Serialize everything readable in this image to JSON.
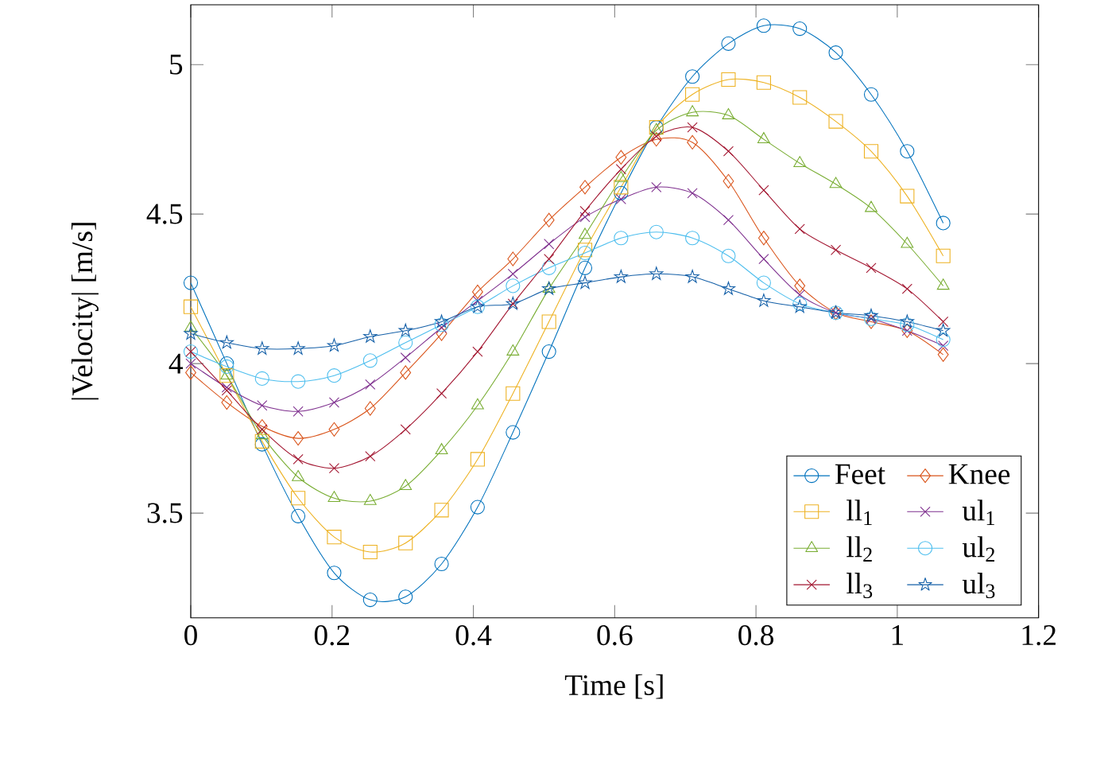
{
  "chart_data": {
    "type": "line",
    "xlabel": "Time [s]",
    "ylabel": "|Velocity| [m/s]",
    "xlim": [
      0,
      1.2
    ],
    "ylim": [
      3.15,
      5.2
    ],
    "xticks": [
      0,
      0.2,
      0.4,
      0.6,
      0.8,
      1,
      1.2
    ],
    "yticks": [
      3.5,
      4,
      4.5,
      5
    ],
    "x": [
      0,
      0.051,
      0.101,
      0.152,
      0.203,
      0.254,
      0.304,
      0.355,
      0.406,
      0.456,
      0.507,
      0.558,
      0.609,
      0.659,
      0.71,
      0.761,
      0.811,
      0.862,
      0.913,
      0.963,
      1.014,
      1.065
    ],
    "legend": "bottom right",
    "grid": false,
    "line_style": "solid",
    "series": [
      {
        "name": "Feet",
        "color": "#0072bd",
        "marker": "circle",
        "values": [
          4.27,
          4.0,
          3.73,
          3.49,
          3.3,
          3.21,
          3.22,
          3.33,
          3.52,
          3.77,
          4.04,
          4.32,
          4.57,
          4.79,
          4.96,
          5.07,
          5.13,
          5.12,
          5.04,
          4.9,
          4.71,
          4.47
        ]
      },
      {
        "name": "Knee",
        "color": "#d95319",
        "marker": "diamond",
        "values": [
          3.97,
          3.87,
          3.79,
          3.75,
          3.78,
          3.85,
          3.97,
          4.1,
          4.24,
          4.35,
          4.48,
          4.59,
          4.69,
          4.75,
          4.74,
          4.61,
          4.42,
          4.26,
          4.17,
          4.14,
          4.11,
          4.03
        ]
      },
      {
        "name": "ll$_{1}$",
        "color": "#edb120",
        "marker": "square",
        "values": [
          4.19,
          3.96,
          3.74,
          3.55,
          3.42,
          3.37,
          3.4,
          3.51,
          3.68,
          3.9,
          4.14,
          4.38,
          4.59,
          4.79,
          4.9,
          4.95,
          4.94,
          4.89,
          4.81,
          4.71,
          4.56,
          4.36
        ]
      },
      {
        "name": "ul$_{1}$",
        "color": "#7e2f8e",
        "marker": "cross",
        "values": [
          4.0,
          3.92,
          3.86,
          3.84,
          3.87,
          3.93,
          4.02,
          4.12,
          4.21,
          4.3,
          4.4,
          4.49,
          4.55,
          4.59,
          4.57,
          4.48,
          4.35,
          4.23,
          4.17,
          4.15,
          4.11,
          4.06
        ]
      },
      {
        "name": "ll$_{2}$",
        "color": "#77ac30",
        "marker": "triangle",
        "values": [
          4.12,
          3.96,
          3.76,
          3.62,
          3.55,
          3.54,
          3.59,
          3.71,
          3.86,
          4.04,
          4.25,
          4.43,
          4.62,
          4.78,
          4.84,
          4.83,
          4.75,
          4.67,
          4.6,
          4.52,
          4.4,
          4.26
        ]
      },
      {
        "name": "ul$_{2}$",
        "color": "#4dbeee",
        "marker": "circle",
        "values": [
          4.04,
          3.99,
          3.95,
          3.94,
          3.96,
          4.01,
          4.07,
          4.13,
          4.19,
          4.26,
          4.32,
          4.37,
          4.42,
          4.44,
          4.42,
          4.36,
          4.27,
          4.2,
          4.17,
          4.15,
          4.13,
          4.08
        ]
      },
      {
        "name": "ll$_{3}$",
        "color": "#a2142f",
        "marker": "cross",
        "values": [
          4.04,
          3.91,
          3.78,
          3.68,
          3.65,
          3.69,
          3.78,
          3.9,
          4.04,
          4.2,
          4.35,
          4.51,
          4.65,
          4.76,
          4.79,
          4.71,
          4.58,
          4.45,
          4.38,
          4.32,
          4.25,
          4.14
        ]
      },
      {
        "name": "ul$_{3}$",
        "color": "#1560a8",
        "marker": "star",
        "values": [
          4.1,
          4.07,
          4.05,
          4.05,
          4.06,
          4.09,
          4.11,
          4.14,
          4.19,
          4.2,
          4.25,
          4.27,
          4.29,
          4.3,
          4.29,
          4.25,
          4.21,
          4.19,
          4.17,
          4.16,
          4.14,
          4.11
        ]
      }
    ]
  }
}
